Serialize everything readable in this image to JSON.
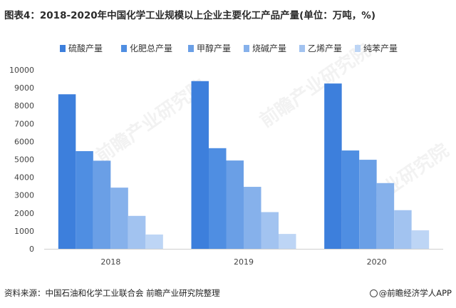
{
  "title": "图表4：2018-2020年中国化学工业规模以上企业主要化工产品产量(单位：万吨，%)",
  "source": "资料来源：中国石油和化学工业联合会 前瞻产业研究院整理",
  "credit": "@前瞻经济学人APP",
  "watermark": "前瞻产业研究院",
  "chart_data": {
    "type": "bar",
    "categories": [
      "2018",
      "2019",
      "2020"
    ],
    "ylim": [
      0,
      10000
    ],
    "yticks": [
      0,
      1000,
      2000,
      3000,
      4000,
      5000,
      6000,
      7000,
      8000,
      9000,
      10000
    ],
    "legend_position": "top",
    "grid": false,
    "series": [
      {
        "name": "硫酸产量",
        "color": "#3d7fdc",
        "values": [
          8636,
          9372,
          9238
        ]
      },
      {
        "name": "化肥总产量",
        "color": "#4f8ee2",
        "values": [
          5459,
          5625,
          5496
        ]
      },
      {
        "name": "甲醇产量",
        "color": "#6a9fe6",
        "values": [
          4925,
          4936,
          4977
        ]
      },
      {
        "name": "烧碱产量",
        "color": "#86b1eb",
        "values": [
          3420,
          3464,
          3674
        ]
      },
      {
        "name": "乙烯产量",
        "color": "#a2c3f0",
        "values": [
          1841,
          2052,
          2160
        ]
      },
      {
        "name": "纯苯产量",
        "color": "#bdd5f5",
        "values": [
          800,
          832,
          1034
        ]
      }
    ]
  }
}
